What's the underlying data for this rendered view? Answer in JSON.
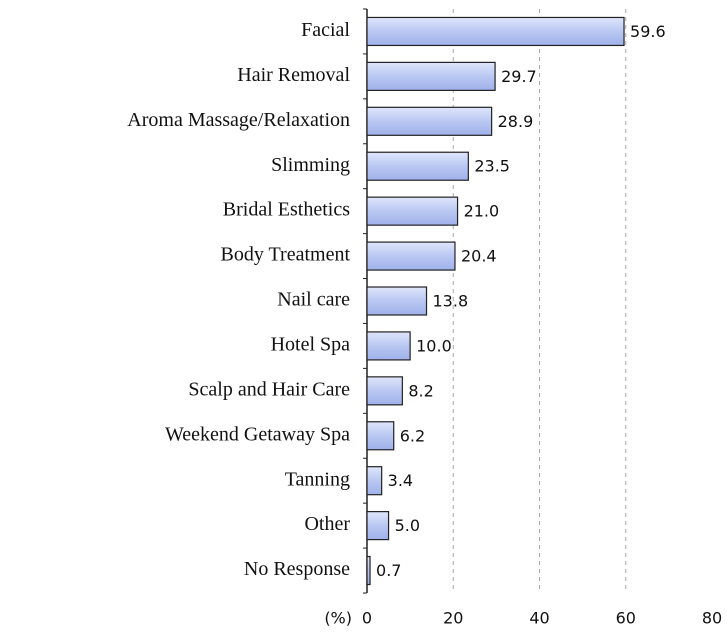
{
  "chart_data": {
    "type": "bar",
    "orientation": "horizontal",
    "categories": [
      "Facial",
      "Hair Removal",
      "Aroma Massage/Relaxation",
      "Slimming",
      "Bridal Esthetics",
      "Body Treatment",
      "Nail care",
      "Hotel Spa",
      "Scalp and Hair Care",
      "Weekend Getaway Spa",
      "Tanning",
      "Other",
      "No Response"
    ],
    "values": [
      59.6,
      29.7,
      28.9,
      23.5,
      21.0,
      20.4,
      13.8,
      10.0,
      8.2,
      6.2,
      3.4,
      5.0,
      0.7
    ],
    "value_labels": [
      "59.6",
      "29.7",
      "28.9",
      "23.5",
      "21.0",
      "20.4",
      "13.8",
      "10.0",
      "8.2",
      "6.2",
      "3.4",
      "5.0",
      "0.7"
    ],
    "color": "#b9c7f2",
    "xlabel": "(%)",
    "xlim": [
      0,
      80
    ],
    "xticks": [
      0,
      20,
      40,
      60,
      80
    ],
    "grid": true
  }
}
